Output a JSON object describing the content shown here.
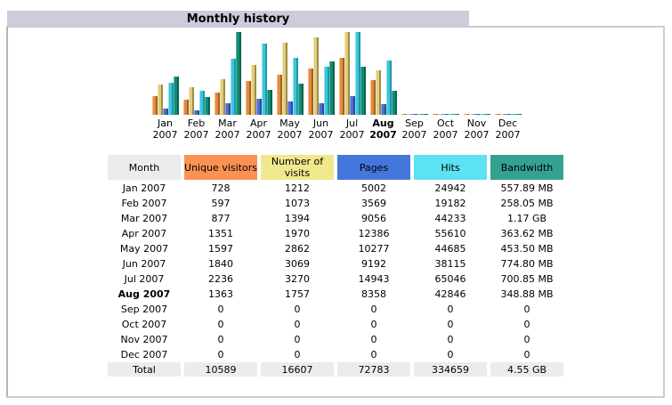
{
  "title_bar": {
    "label": "Monthly history"
  },
  "chart_data": {
    "type": "bar",
    "title": "Monthly history",
    "categories": [
      "Jan 2007",
      "Feb 2007",
      "Mar 2007",
      "Apr 2007",
      "May 2007",
      "Jun 2007",
      "Jul 2007",
      "Aug 2007",
      "Sep 2007",
      "Oct 2007",
      "Nov 2007",
      "Dec 2007"
    ],
    "highlight_category": "Aug 2007",
    "legend_position": "none",
    "axes_visible": false,
    "series": [
      {
        "name": "Unique visitors",
        "scale_group": "visits",
        "color": {
          "light": "#F5BE7D",
          "main": "#E68A3C",
          "dark": "#A0622A"
        },
        "values": [
          728,
          597,
          877,
          1351,
          1597,
          1840,
          2236,
          1363,
          0,
          0,
          0,
          0
        ]
      },
      {
        "name": "Number of visits",
        "scale_group": "visits",
        "color": {
          "light": "#F1E5AE",
          "main": "#E2CD7D",
          "dark": "#9E8C4A"
        },
        "values": [
          1212,
          1073,
          1394,
          1970,
          2862,
          3069,
          3270,
          1757,
          0,
          0,
          0,
          0
        ]
      },
      {
        "name": "Pages",
        "scale_group": "hits",
        "color": {
          "light": "#8CA4E8",
          "main": "#4A6FD4",
          "dark": "#2E4A9E"
        },
        "values": [
          5002,
          3569,
          9056,
          12386,
          10277,
          9192,
          14943,
          8358,
          0,
          0,
          0,
          0
        ]
      },
      {
        "name": "Hits",
        "scale_group": "hits",
        "color": {
          "light": "#8AE3EE",
          "main": "#3EC6DA",
          "dark": "#1F96AB"
        },
        "values": [
          24942,
          19182,
          44233,
          55610,
          44685,
          38115,
          65046,
          42846,
          0,
          0,
          0,
          0
        ]
      },
      {
        "name": "Bandwidth (MB)",
        "scale_group": "bandwidth",
        "color": {
          "light": "#55B5A0",
          "main": "#128C73",
          "dark": "#0A6350"
        },
        "values": [
          557.89,
          258.05,
          1197.57,
          363.62,
          453.5,
          774.8,
          700.85,
          348.88,
          0,
          0,
          0,
          0
        ]
      }
    ]
  },
  "table": {
    "header": [
      {
        "label": "Month",
        "bg": "#ECECEC",
        "fg": "#000000"
      },
      {
        "label": "Unique visitors",
        "bg": "#FB9153",
        "fg": "#000000"
      },
      {
        "label": "Number of visits",
        "bg": "#F1E88D",
        "fg": "#000000"
      },
      {
        "label": "Pages",
        "bg": "#4477DD",
        "fg": "#000000"
      },
      {
        "label": "Hits",
        "bg": "#5CE2F3",
        "fg": "#000000"
      },
      {
        "label": "Bandwidth",
        "bg": "#35A192",
        "fg": "#000000"
      }
    ],
    "rows": [
      {
        "month": "Jan 2007",
        "bold": false,
        "values": [
          "728",
          "1212",
          "5002",
          "24942",
          "557.89 MB"
        ]
      },
      {
        "month": "Feb 2007",
        "bold": false,
        "values": [
          "597",
          "1073",
          "3569",
          "19182",
          "258.05 MB"
        ]
      },
      {
        "month": "Mar 2007",
        "bold": false,
        "values": [
          "877",
          "1394",
          "9056",
          "44233",
          "1.17 GB"
        ]
      },
      {
        "month": "Apr 2007",
        "bold": false,
        "values": [
          "1351",
          "1970",
          "12386",
          "55610",
          "363.62 MB"
        ]
      },
      {
        "month": "May 2007",
        "bold": false,
        "values": [
          "1597",
          "2862",
          "10277",
          "44685",
          "453.50 MB"
        ]
      },
      {
        "month": "Jun 2007",
        "bold": false,
        "values": [
          "1840",
          "3069",
          "9192",
          "38115",
          "774.80 MB"
        ]
      },
      {
        "month": "Jul 2007",
        "bold": false,
        "values": [
          "2236",
          "3270",
          "14943",
          "65046",
          "700.85 MB"
        ]
      },
      {
        "month": "Aug 2007",
        "bold": true,
        "values": [
          "1363",
          "1757",
          "8358",
          "42846",
          "348.88 MB"
        ]
      },
      {
        "month": "Sep 2007",
        "bold": false,
        "values": [
          "0",
          "0",
          "0",
          "0",
          "0"
        ]
      },
      {
        "month": "Oct 2007",
        "bold": false,
        "values": [
          "0",
          "0",
          "0",
          "0",
          "0"
        ]
      },
      {
        "month": "Nov 2007",
        "bold": false,
        "values": [
          "0",
          "0",
          "0",
          "0",
          "0"
        ]
      },
      {
        "month": "Dec 2007",
        "bold": false,
        "values": [
          "0",
          "0",
          "0",
          "0",
          "0"
        ]
      }
    ],
    "total_row": {
      "label": "Total",
      "bg": "#ECECEC",
      "values": [
        "10589",
        "16607",
        "72783",
        "334659",
        "4.55 GB"
      ]
    }
  }
}
